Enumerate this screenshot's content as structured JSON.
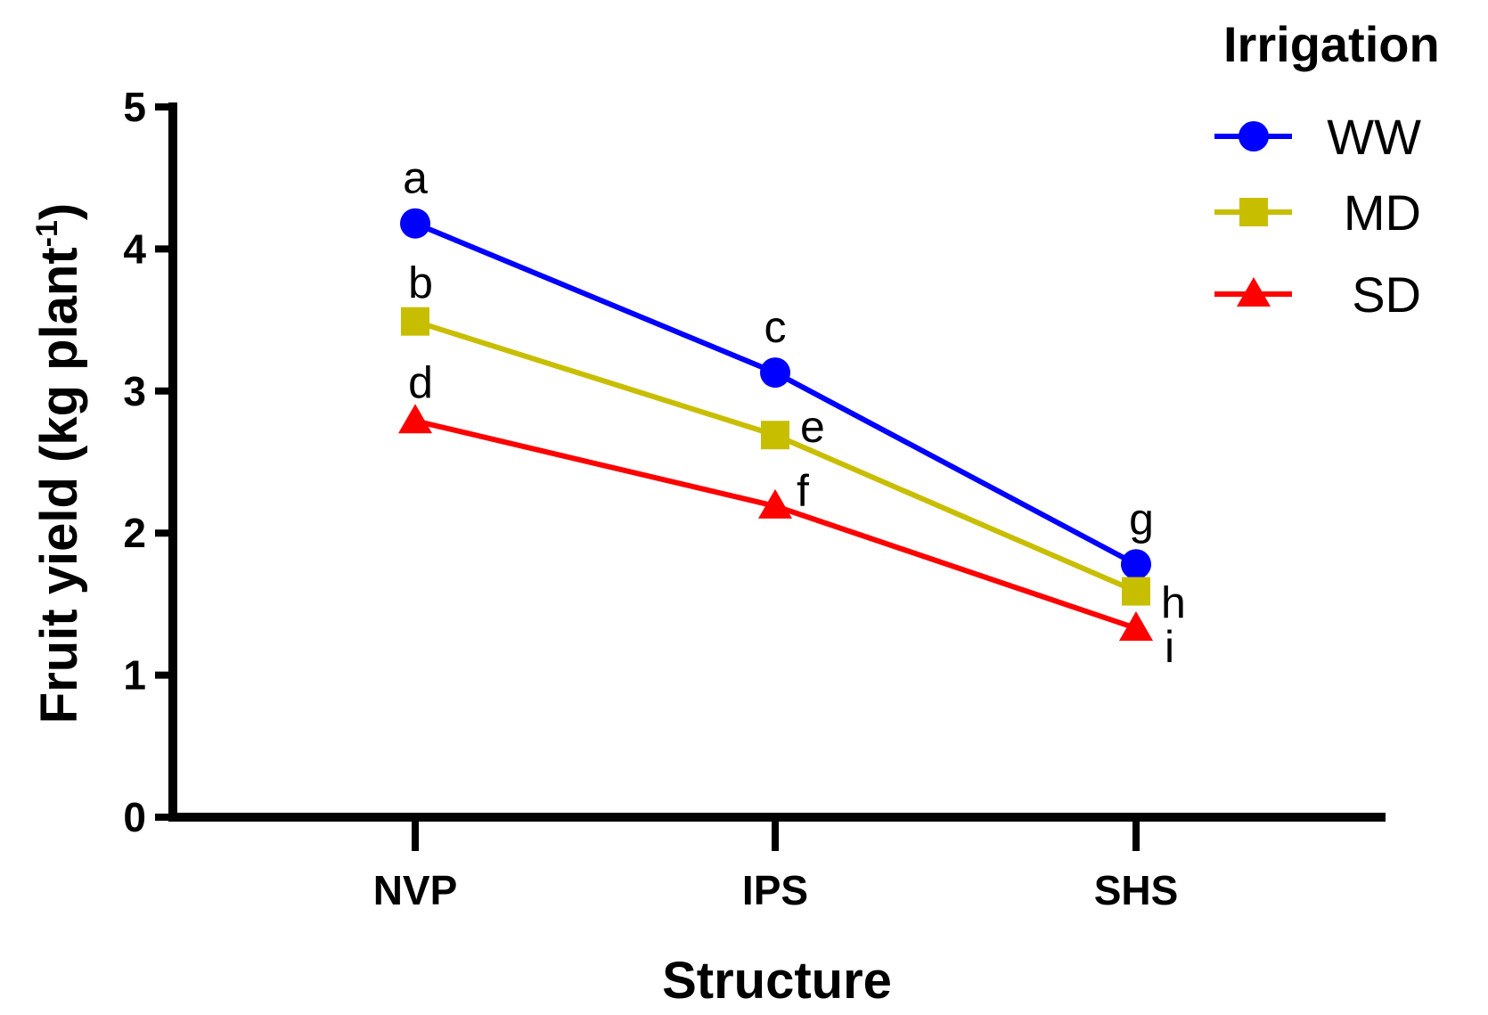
{
  "chart_data": {
    "type": "line",
    "title": "",
    "xlabel": "Structure",
    "ylabel": {
      "text": "Fruit yield (kg plant",
      "superscript": "-1",
      "close": ")"
    },
    "categories": [
      "NVP",
      "IPS",
      "SHS"
    ],
    "ylim": [
      0,
      5
    ],
    "yticks": [
      "0",
      "1",
      "2",
      "3",
      "4",
      "5"
    ],
    "grid": false,
    "legend": {
      "title": "Irrigation",
      "position": "top-right"
    },
    "series": [
      {
        "name": "WW",
        "color": "#0000ff",
        "marker": "circle",
        "values": [
          4.18,
          3.13,
          1.78
        ],
        "labels": [
          "a",
          "c",
          "g"
        ]
      },
      {
        "name": "MD",
        "color": "#c8be00",
        "marker": "square",
        "values": [
          3.49,
          2.69,
          1.59
        ],
        "labels": [
          "b",
          "e",
          "h"
        ]
      },
      {
        "name": "SD",
        "color": "#ff0000",
        "marker": "triangle",
        "values": [
          2.79,
          2.19,
          1.33
        ],
        "labels": [
          "d",
          "f",
          "i"
        ]
      }
    ]
  }
}
